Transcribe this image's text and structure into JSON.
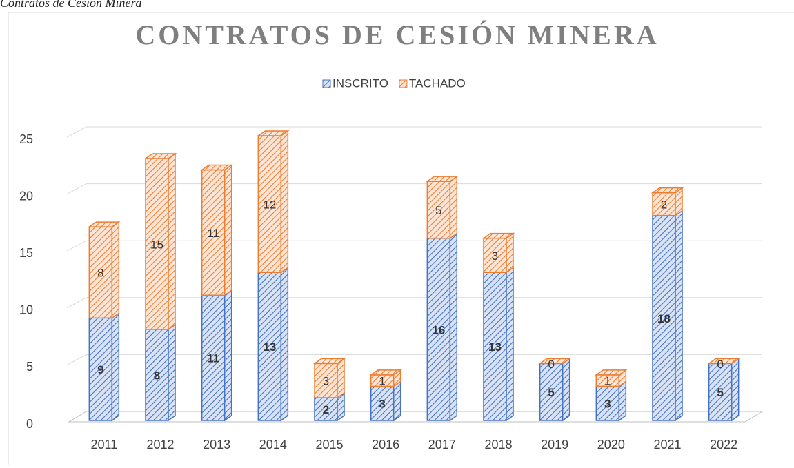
{
  "caption": "Contratos de Cesión Minera",
  "chart_data": {
    "type": "bar3d_stacked",
    "title": "CONTRATOS DE CESIÓN MINERA",
    "categories": [
      "2011",
      "2012",
      "2013",
      "2014",
      "2015",
      "2016",
      "2017",
      "2018",
      "2019",
      "2020",
      "2021",
      "2022"
    ],
    "series": [
      {
        "name": "INSCRITO",
        "color": "#4472c4",
        "values": [
          9,
          8,
          11,
          13,
          2,
          3,
          16,
          13,
          5,
          3,
          18,
          5
        ]
      },
      {
        "name": "TACHADO",
        "color": "#ed7d31",
        "values": [
          8,
          15,
          11,
          12,
          3,
          1,
          5,
          3,
          0,
          1,
          2,
          0
        ]
      }
    ],
    "ylim": [
      0,
      25
    ],
    "yticks": [
      0,
      5,
      10,
      15,
      20,
      25
    ],
    "grid": true,
    "legend": "top"
  }
}
